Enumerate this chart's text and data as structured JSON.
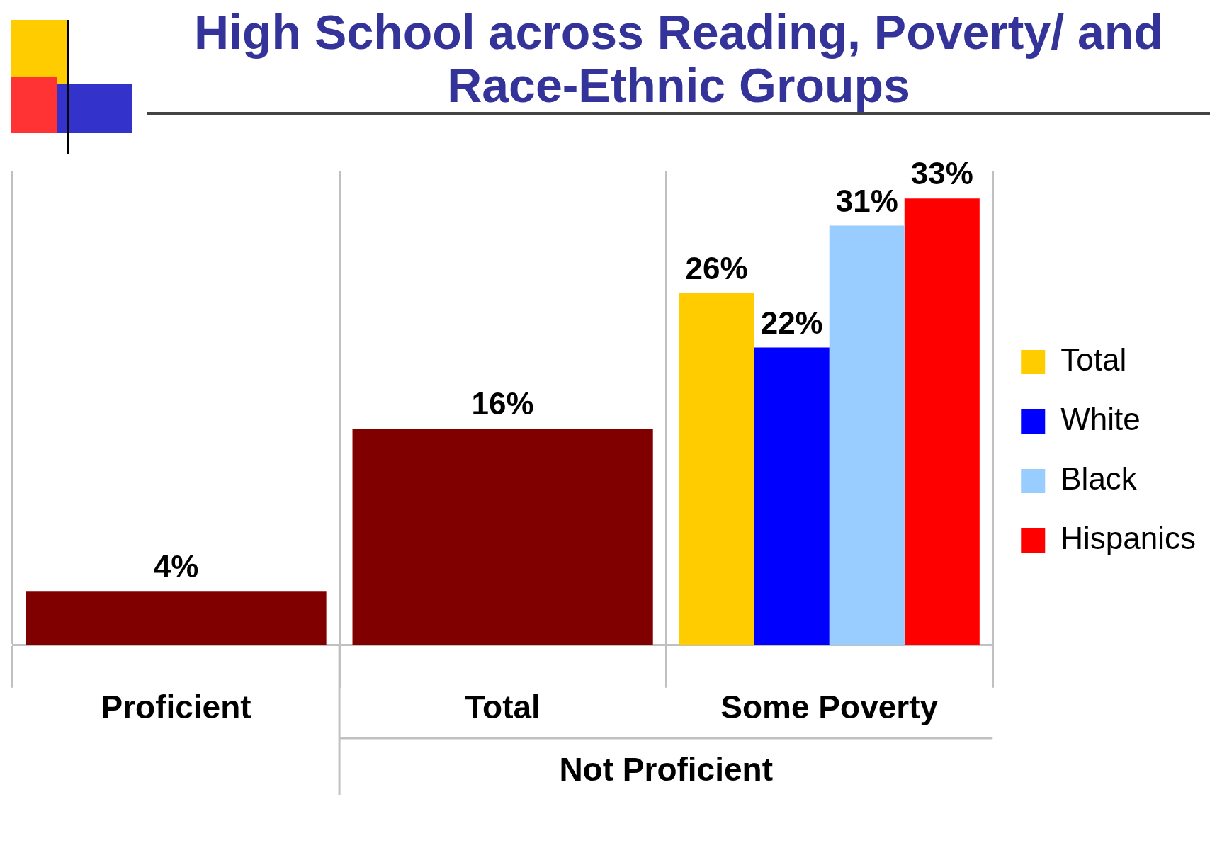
{
  "chart_data": {
    "type": "bar",
    "title": "High School across Reading, Poverty/ and Race-Ethnic Groups",
    "categories": [
      "Proficient",
      "Total",
      "Some Poverty"
    ],
    "series": [
      {
        "color": "#800000",
        "values": [
          4,
          16,
          null
        ],
        "value_labels": [
          "4%",
          "16%",
          null
        ]
      },
      {
        "name": "Total",
        "color": "#ffcc00",
        "values": [
          null,
          null,
          26
        ],
        "value_labels": [
          null,
          null,
          "26%"
        ]
      },
      {
        "name": "White",
        "color": "#0000ff",
        "values": [
          null,
          null,
          22
        ],
        "value_labels": [
          null,
          null,
          "22%"
        ]
      },
      {
        "name": "Black",
        "color": "#99ccff",
        "values": [
          null,
          null,
          31
        ],
        "value_labels": [
          null,
          null,
          "31%"
        ]
      },
      {
        "name": "Hispanics",
        "color": "#ff0000",
        "values": [
          null,
          null,
          33
        ],
        "value_labels": [
          null,
          null,
          "33%"
        ]
      }
    ],
    "annotations": [
      "Not Proficient"
    ],
    "grid": "x",
    "legend": "right"
  }
}
